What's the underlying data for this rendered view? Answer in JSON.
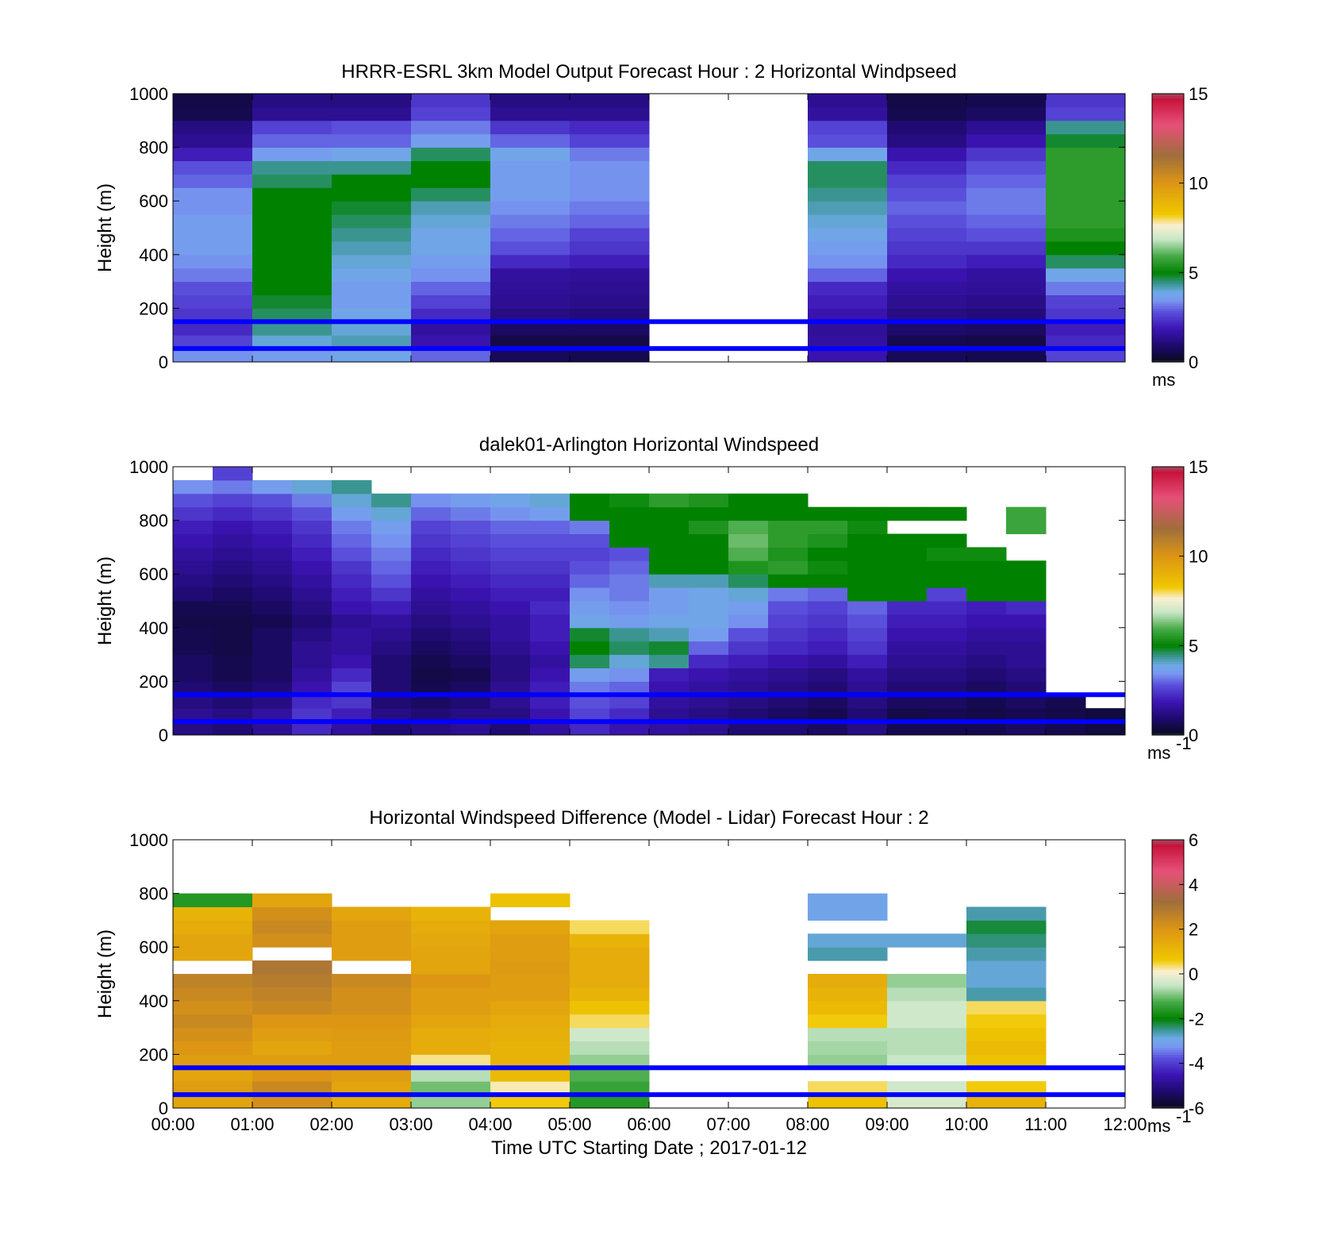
{
  "chart_data": [
    {
      "type": "heatmap",
      "title": "HRRR-ESRL 3km Model Output   Forecast Hour : 2 Horizontal Windpseed",
      "xlabel": "",
      "ylabel": "Height (m)",
      "xlim": [
        "00:00",
        "12:00"
      ],
      "ylim": [
        0,
        1000
      ],
      "yticks": [
        "0",
        "200",
        "400",
        "600",
        "800",
        "1000"
      ],
      "colorbar": {
        "min": 0,
        "max": 15,
        "ticks": [
          "0",
          "5",
          "10",
          "15"
        ],
        "unit": "ms",
        "unit_sup": "",
        "scale": "speed"
      },
      "reference_lines_m": [
        50,
        150
      ],
      "time_columns_hours": [
        0,
        1,
        2,
        3,
        4,
        5,
        6,
        7,
        8,
        9,
        10,
        11
      ],
      "height_rows_m": [
        25,
        75,
        125,
        175,
        225,
        275,
        325,
        375,
        425,
        475,
        525,
        575,
        625,
        675,
        725,
        775,
        825,
        875,
        925,
        975
      ],
      "values": [
        [
          3.4,
          3.6,
          3.8,
          3.0,
          0.7,
          0.6,
          null,
          null,
          1.8,
          0.7,
          0.6,
          2.6
        ],
        [
          2.6,
          4.0,
          4.2,
          1.8,
          0.5,
          0.5,
          null,
          null,
          1.6,
          0.6,
          0.5,
          2.2
        ],
        [
          2.2,
          4.4,
          4.0,
          1.6,
          0.8,
          0.8,
          null,
          null,
          1.5,
          0.9,
          0.8,
          2.0
        ],
        [
          2.4,
          4.6,
          3.8,
          2.2,
          1.2,
          1.1,
          null,
          null,
          1.8,
          1.2,
          1.1,
          2.4
        ],
        [
          2.6,
          4.8,
          3.6,
          2.6,
          1.4,
          1.3,
          null,
          null,
          2.0,
          1.4,
          1.3,
          2.6
        ],
        [
          2.8,
          5.0,
          3.6,
          3.0,
          1.5,
          1.4,
          null,
          null,
          2.2,
          1.6,
          1.5,
          3.2
        ],
        [
          3.2,
          5.0,
          3.8,
          3.4,
          1.6,
          1.5,
          null,
          null,
          3.0,
          1.8,
          1.6,
          3.8
        ],
        [
          3.4,
          5.0,
          4.0,
          3.6,
          2.2,
          2.0,
          null,
          null,
          3.4,
          2.2,
          2.0,
          4.6
        ],
        [
          3.6,
          5.0,
          4.2,
          3.8,
          2.8,
          2.4,
          null,
          null,
          3.6,
          2.4,
          2.4,
          5.0
        ],
        [
          3.6,
          5.0,
          4.4,
          3.8,
          3.0,
          2.6,
          null,
          null,
          3.8,
          2.6,
          2.8,
          5.4
        ],
        [
          3.6,
          5.0,
          4.6,
          4.0,
          3.2,
          3.0,
          null,
          null,
          4.0,
          2.8,
          3.0,
          5.6
        ],
        [
          3.4,
          5.0,
          4.8,
          4.2,
          3.4,
          3.2,
          null,
          null,
          4.2,
          3.0,
          3.2,
          5.6
        ],
        [
          3.4,
          5.0,
          5.0,
          4.6,
          3.6,
          3.4,
          null,
          null,
          4.4,
          2.8,
          3.2,
          5.6
        ],
        [
          3.0,
          4.6,
          5.0,
          5.0,
          3.6,
          3.4,
          null,
          null,
          4.6,
          2.6,
          3.0,
          5.6
        ],
        [
          2.8,
          4.4,
          4.4,
          5.0,
          3.6,
          3.4,
          null,
          null,
          4.6,
          2.2,
          2.8,
          5.6
        ],
        [
          2.0,
          3.6,
          3.8,
          4.6,
          3.8,
          3.2,
          null,
          null,
          3.8,
          1.8,
          2.4,
          5.6
        ],
        [
          1.4,
          3.0,
          3.0,
          3.6,
          3.0,
          2.6,
          null,
          null,
          2.8,
          1.2,
          1.8,
          4.8
        ],
        [
          1.2,
          2.6,
          2.8,
          3.2,
          2.4,
          2.2,
          null,
          null,
          2.6,
          1.0,
          1.4,
          4.4
        ],
        [
          0.6,
          1.4,
          1.4,
          2.6,
          1.4,
          1.4,
          null,
          null,
          1.6,
          0.6,
          0.8,
          2.6
        ],
        [
          0.5,
          1.2,
          1.2,
          2.4,
          1.2,
          1.2,
          null,
          null,
          1.4,
          0.5,
          0.6,
          2.4
        ]
      ]
    },
    {
      "type": "heatmap",
      "title": "dalek01-Arlington  Horizontal Windspeed",
      "xlabel": "",
      "ylabel": "Height (m)",
      "xlim": [
        "00:00",
        "12:00"
      ],
      "ylim": [
        0,
        1000
      ],
      "yticks": [
        "0",
        "200",
        "400",
        "600",
        "800",
        "1000"
      ],
      "colorbar": {
        "min": 0,
        "max": 15,
        "ticks": [
          "0",
          "5",
          "10",
          "15"
        ],
        "unit": "ms",
        "unit_sup": "-1",
        "scale": "speed"
      },
      "reference_lines_m": [
        50,
        150
      ],
      "time_columns_hours": [
        0,
        0.5,
        1,
        1.5,
        2,
        2.5,
        3,
        3.5,
        4,
        4.5,
        5,
        5.5,
        6,
        6.5,
        7,
        7.5,
        8,
        8.5,
        9,
        9.5,
        10,
        10.5,
        11,
        11.5
      ],
      "height_rows_m": [
        25,
        75,
        125,
        175,
        225,
        275,
        325,
        375,
        425,
        475,
        525,
        575,
        625,
        675,
        725,
        775,
        825,
        875,
        925,
        975
      ],
      "values": [
        [
          1.2,
          1.0,
          1.4,
          2.2,
          1.6,
          1.0,
          1.2,
          1.4,
          1.0,
          1.6,
          2.2,
          1.8,
          1.6,
          1.4,
          1.0,
          1.0,
          0.8,
          1.2,
          0.6,
          0.6,
          0.6,
          0.8,
          0.6,
          0.4
        ],
        [
          1.4,
          1.2,
          1.6,
          2.4,
          2.0,
          1.2,
          1.0,
          1.2,
          1.2,
          1.8,
          2.6,
          2.2,
          1.4,
          1.2,
          1.0,
          0.8,
          0.6,
          1.0,
          0.5,
          0.6,
          0.5,
          0.6,
          0.5,
          0.4
        ],
        [
          1.2,
          1.0,
          1.2,
          2.2,
          2.4,
          1.0,
          0.8,
          1.0,
          1.4,
          2.0,
          2.8,
          2.6,
          1.6,
          1.4,
          1.2,
          1.0,
          0.8,
          1.2,
          0.8,
          0.8,
          0.6,
          0.8,
          0.6,
          null
        ],
        [
          1.0,
          0.8,
          1.0,
          1.8,
          2.6,
          1.0,
          0.6,
          0.8,
          1.4,
          2.0,
          3.2,
          3.0,
          1.8,
          1.6,
          1.4,
          1.2,
          1.0,
          1.4,
          1.0,
          1.0,
          0.8,
          1.0,
          null,
          null
        ],
        [
          0.8,
          0.6,
          0.8,
          1.6,
          2.2,
          1.0,
          0.5,
          0.6,
          1.2,
          1.8,
          3.6,
          3.4,
          2.0,
          1.8,
          1.6,
          1.4,
          1.2,
          1.6,
          1.2,
          1.2,
          1.0,
          1.2,
          null,
          null
        ],
        [
          0.8,
          0.6,
          0.8,
          1.4,
          1.8,
          1.0,
          0.6,
          0.8,
          1.2,
          1.6,
          4.6,
          4.0,
          4.4,
          2.2,
          2.0,
          1.8,
          1.6,
          2.0,
          1.4,
          1.4,
          1.2,
          1.4,
          null,
          null
        ],
        [
          0.6,
          0.5,
          0.8,
          1.4,
          1.6,
          1.2,
          0.8,
          1.0,
          1.4,
          1.8,
          5.0,
          4.6,
          4.8,
          3.0,
          2.4,
          2.2,
          2.0,
          2.4,
          1.6,
          1.6,
          1.4,
          1.4,
          null,
          null
        ],
        [
          0.6,
          0.5,
          0.8,
          1.2,
          1.6,
          1.4,
          1.0,
          1.2,
          1.6,
          2.0,
          4.8,
          4.4,
          4.2,
          3.6,
          2.8,
          2.4,
          2.2,
          2.6,
          1.8,
          1.8,
          1.6,
          1.6,
          null,
          null
        ],
        [
          0.5,
          0.5,
          0.6,
          1.0,
          1.4,
          1.6,
          1.2,
          1.4,
          1.6,
          2.0,
          3.8,
          3.6,
          3.8,
          3.8,
          3.4,
          2.6,
          2.4,
          2.8,
          2.0,
          2.0,
          1.8,
          1.8,
          null,
          null
        ],
        [
          0.6,
          0.6,
          0.8,
          1.2,
          1.8,
          2.0,
          1.4,
          1.6,
          1.8,
          2.2,
          3.6,
          3.4,
          3.6,
          3.8,
          3.6,
          2.8,
          2.6,
          3.0,
          2.2,
          2.2,
          2.0,
          2.2,
          null,
          null
        ],
        [
          1.0,
          0.8,
          1.0,
          1.4,
          2.0,
          2.4,
          1.6,
          1.8,
          2.0,
          2.0,
          3.4,
          3.2,
          3.6,
          3.8,
          4.0,
          3.2,
          3.0,
          5.0,
          5.0,
          2.6,
          5.0,
          5.0,
          null,
          null
        ],
        [
          1.2,
          1.0,
          1.2,
          1.6,
          2.2,
          2.8,
          1.8,
          2.0,
          2.2,
          2.2,
          3.0,
          3.2,
          4.2,
          4.2,
          4.6,
          5.0,
          5.0,
          5.0,
          5.0,
          5.0,
          5.0,
          5.0,
          null,
          null
        ],
        [
          1.4,
          1.2,
          1.4,
          1.8,
          2.4,
          3.0,
          2.0,
          2.2,
          2.4,
          2.4,
          2.8,
          3.0,
          5.0,
          5.0,
          5.4,
          5.6,
          5.2,
          5.0,
          5.0,
          5.0,
          5.0,
          5.0,
          null,
          null
        ],
        [
          1.6,
          1.4,
          1.6,
          2.0,
          2.8,
          3.2,
          2.2,
          2.4,
          2.6,
          2.6,
          2.6,
          2.8,
          5.0,
          5.0,
          6.0,
          5.4,
          5.0,
          5.0,
          5.0,
          5.2,
          5.2,
          null,
          null,
          null
        ],
        [
          1.8,
          1.6,
          1.8,
          2.2,
          3.0,
          3.4,
          2.4,
          2.6,
          2.8,
          2.8,
          2.8,
          5.0,
          5.0,
          5.0,
          6.2,
          5.6,
          5.4,
          5.0,
          5.0,
          5.0,
          null,
          null,
          null,
          null
        ],
        [
          2.0,
          1.8,
          2.0,
          2.4,
          3.2,
          3.6,
          2.6,
          2.8,
          3.0,
          3.0,
          3.2,
          5.0,
          5.0,
          5.4,
          6.0,
          5.6,
          5.6,
          5.2,
          null,
          null,
          null,
          5.8,
          null,
          null
        ],
        [
          2.4,
          2.2,
          2.4,
          2.8,
          3.6,
          4.0,
          3.0,
          3.2,
          3.4,
          3.6,
          5.0,
          5.0,
          5.0,
          5.0,
          5.0,
          5.0,
          5.0,
          5.0,
          5.0,
          5.0,
          null,
          5.8,
          null,
          null
        ],
        [
          2.8,
          2.6,
          2.8,
          3.2,
          4.0,
          4.4,
          3.4,
          3.6,
          3.8,
          4.0,
          5.0,
          5.2,
          5.6,
          5.4,
          5.0,
          5.0,
          null,
          null,
          null,
          null,
          null,
          null,
          null,
          null
        ],
        [
          3.4,
          3.2,
          3.6,
          4.0,
          4.4,
          null,
          null,
          null,
          null,
          null,
          null,
          null,
          null,
          null,
          null,
          null,
          null,
          null,
          null,
          null,
          null,
          null,
          null,
          null
        ],
        [
          null,
          2.6,
          null,
          null,
          null,
          null,
          null,
          null,
          null,
          null,
          null,
          null,
          null,
          null,
          null,
          null,
          null,
          null,
          null,
          null,
          null,
          null,
          null,
          null
        ]
      ]
    },
    {
      "type": "heatmap",
      "title": "Horizontal Windspeed Difference (Model - Lidar) Forecast Hour : 2",
      "xlabel": "Time UTC  Starting Date ; 2017-01-12",
      "ylabel": "Height (m)",
      "xlim": [
        "00:00",
        "12:00"
      ],
      "xticks": [
        "00:00",
        "01:00",
        "02:00",
        "03:00",
        "04:00",
        "05:00",
        "06:00",
        "07:00",
        "08:00",
        "09:00",
        "10:00",
        "11:00",
        "12:00"
      ],
      "ylim": [
        0,
        1000
      ],
      "yticks": [
        "0",
        "200",
        "400",
        "600",
        "800",
        "1000"
      ],
      "colorbar": {
        "min": -6,
        "max": 6,
        "ticks": [
          "-6",
          "-4",
          "-2",
          "0",
          "2",
          "4",
          "6"
        ],
        "unit": "ms",
        "unit_sup": "-1",
        "scale": "diff"
      },
      "reference_lines_m": [
        50,
        150
      ],
      "time_columns_hours": [
        0,
        1,
        2,
        3,
        4,
        5,
        6,
        7,
        8,
        9,
        10,
        11
      ],
      "height_rows_m": [
        25,
        75,
        125,
        175,
        225,
        275,
        325,
        375,
        425,
        475,
        525,
        575,
        625,
        675,
        725,
        775,
        825,
        875,
        925,
        975
      ],
      "values": [
        [
          1.6,
          2.2,
          1.4,
          -0.8,
          0.6,
          -1.6,
          null,
          null,
          0.8,
          -0.3,
          1.2,
          null
        ],
        [
          1.8,
          2.4,
          1.6,
          -1.0,
          0.2,
          -1.4,
          null,
          null,
          0.4,
          -0.4,
          0.6,
          null
        ],
        [
          1.6,
          2.0,
          1.8,
          -0.6,
          1.0,
          -1.2,
          null,
          null,
          null,
          null,
          null,
          null
        ],
        [
          1.8,
          1.8,
          1.8,
          0.3,
          1.2,
          -0.8,
          null,
          null,
          -0.8,
          -0.5,
          0.8,
          null
        ],
        [
          2.0,
          1.6,
          1.8,
          1.4,
          1.2,
          -0.6,
          null,
          null,
          -0.7,
          -0.6,
          1.0,
          null
        ],
        [
          2.2,
          1.8,
          1.9,
          1.4,
          1.3,
          -0.4,
          null,
          null,
          -0.6,
          -0.6,
          0.8,
          null
        ],
        [
          2.4,
          2.0,
          2.0,
          1.6,
          1.4,
          0.4,
          null,
          null,
          0.6,
          -0.4,
          0.6,
          null
        ],
        [
          2.2,
          2.4,
          2.2,
          1.8,
          1.6,
          0.8,
          null,
          null,
          1.0,
          -0.4,
          0.4,
          null
        ],
        [
          2.4,
          2.6,
          2.2,
          1.8,
          1.8,
          1.2,
          null,
          null,
          1.2,
          -0.6,
          -2.6,
          null
        ],
        [
          2.6,
          2.8,
          2.4,
          2.0,
          1.8,
          1.4,
          null,
          null,
          1.4,
          -0.8,
          -2.8,
          null
        ],
        [
          null,
          3.0,
          null,
          1.6,
          1.9,
          1.4,
          null,
          null,
          null,
          null,
          -2.8,
          null
        ],
        [
          1.6,
          null,
          1.8,
          1.6,
          1.8,
          1.4,
          null,
          null,
          -2.6,
          null,
          -2.6,
          null
        ],
        [
          1.6,
          2.2,
          1.8,
          1.5,
          1.8,
          1.2,
          null,
          null,
          -2.8,
          -2.8,
          -2.4,
          null
        ],
        [
          1.4,
          2.4,
          1.8,
          1.4,
          1.6,
          0.4,
          null,
          null,
          null,
          null,
          -2.2,
          null
        ],
        [
          1.2,
          2.2,
          1.6,
          1.2,
          null,
          null,
          null,
          null,
          -3.0,
          null,
          -2.6,
          null
        ],
        [
          -1.6,
          1.6,
          null,
          null,
          0.8,
          null,
          null,
          null,
          -3.0,
          null,
          null,
          null
        ],
        [
          null,
          null,
          null,
          null,
          null,
          null,
          null,
          null,
          null,
          null,
          null,
          null
        ],
        [
          null,
          null,
          null,
          null,
          null,
          null,
          null,
          null,
          null,
          null,
          null,
          null
        ],
        [
          null,
          null,
          null,
          null,
          null,
          null,
          null,
          null,
          null,
          null,
          null,
          null
        ],
        [
          null,
          null,
          null,
          null,
          null,
          null,
          null,
          null,
          null,
          null,
          null,
          null
        ]
      ]
    }
  ]
}
